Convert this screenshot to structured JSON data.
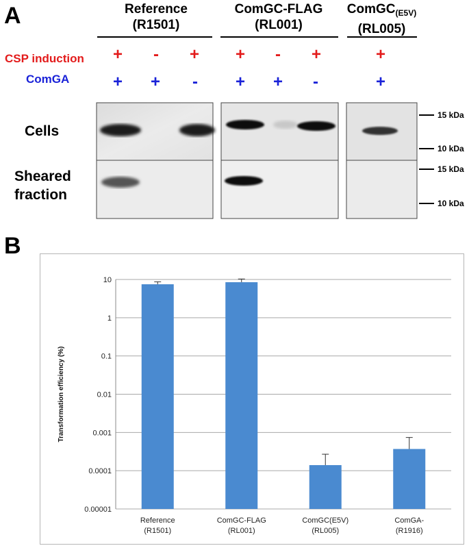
{
  "panel_a": {
    "letter": "A",
    "strains": [
      {
        "name": "Reference",
        "id": "(R1501)"
      },
      {
        "name": "ComGC-FLAG",
        "id": "(RL001)"
      },
      {
        "name": "ComGC",
        "sub": "(E5V)",
        "id": "(RL005)"
      }
    ],
    "row_labels": {
      "csp": "CSP induction",
      "comga": "ComGA"
    },
    "csp_symbols": [
      "+",
      "-",
      "+",
      "+",
      "-",
      "+",
      "+"
    ],
    "comga_symbols": [
      "+",
      "+",
      "-",
      "+",
      "+",
      "-",
      "+"
    ],
    "blot_labels": {
      "cells": "Cells",
      "sheared_line1": "Sheared",
      "sheared_line2": "fraction"
    },
    "mw_markers": [
      "15 kDa",
      "10 kDa",
      "15 kDa",
      "10 kDa"
    ],
    "colors": {
      "csp": "#e31b1b",
      "comga": "#1a22d8"
    }
  },
  "panel_b": {
    "letter": "B"
  },
  "chart_data": {
    "type": "bar",
    "categories": [
      "Reference\n(R1501)",
      "ComGC-FLAG\n(RL001)",
      "ComGC(E5V)\n(RL005)",
      "ComGA-\n(R1916)"
    ],
    "category_lines": [
      [
        "Reference",
        "(R1501)"
      ],
      [
        "ComGC-FLAG",
        "(RL001)"
      ],
      [
        "ComGC(E5V)",
        "(RL005)"
      ],
      [
        "ComGA-",
        "(R1916)"
      ]
    ],
    "values": [
      7.5,
      8.5,
      0.00014,
      0.00037
    ],
    "errors": [
      1.2,
      1.8,
      0.00013,
      0.00037
    ],
    "ylabel": "Transformation efficiency (%)",
    "xlabel": "",
    "yscale": "log",
    "ylim": [
      1e-05,
      10
    ],
    "yticks": [
      "10",
      "1",
      "0.1",
      "0.01",
      "0.001",
      "0.0001",
      "0.00001"
    ],
    "grid": true,
    "bar_color": "#4a8ad0"
  }
}
